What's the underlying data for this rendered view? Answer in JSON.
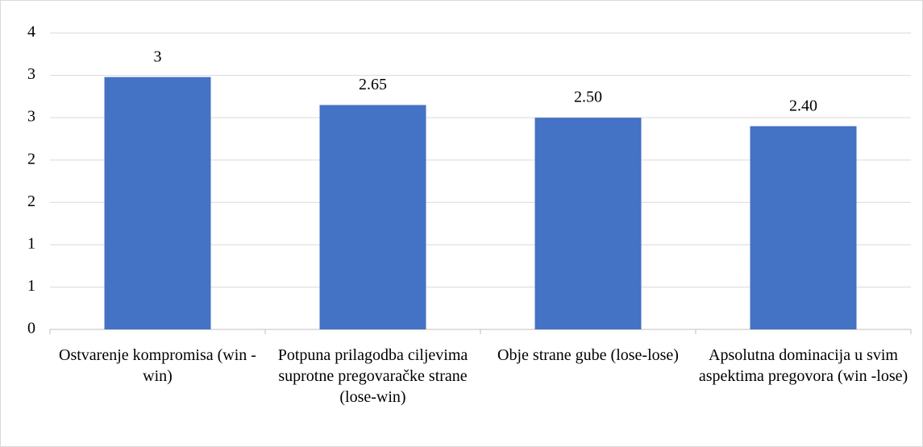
{
  "chart_data": {
    "type": "bar",
    "categories": [
      "Ostvarenje kompromisa (win -win)",
      "Potpuna prilagodba ciljevima suprotne pregovaračke strane (lose-win)",
      "Obje strane gube (lose-lose)",
      "Apsolutna dominacija u svim aspektima pregovora (win -lose)"
    ],
    "values": [
      2.98,
      2.65,
      2.5,
      2.4
    ],
    "value_labels": [
      "3",
      "2.65",
      "2.50",
      "2.40"
    ],
    "color": "#4472c4",
    "ylim": [
      0,
      3.5
    ],
    "yticks": [
      0,
      {
        "value": 0.5,
        "label": "1"
      },
      1,
      {
        "value": 1.5,
        "label": "2"
      },
      2,
      {
        "value": 2.5,
        "label": "3"
      },
      3,
      {
        "value": 3.5,
        "label": "4"
      }
    ],
    "grid": true
  }
}
